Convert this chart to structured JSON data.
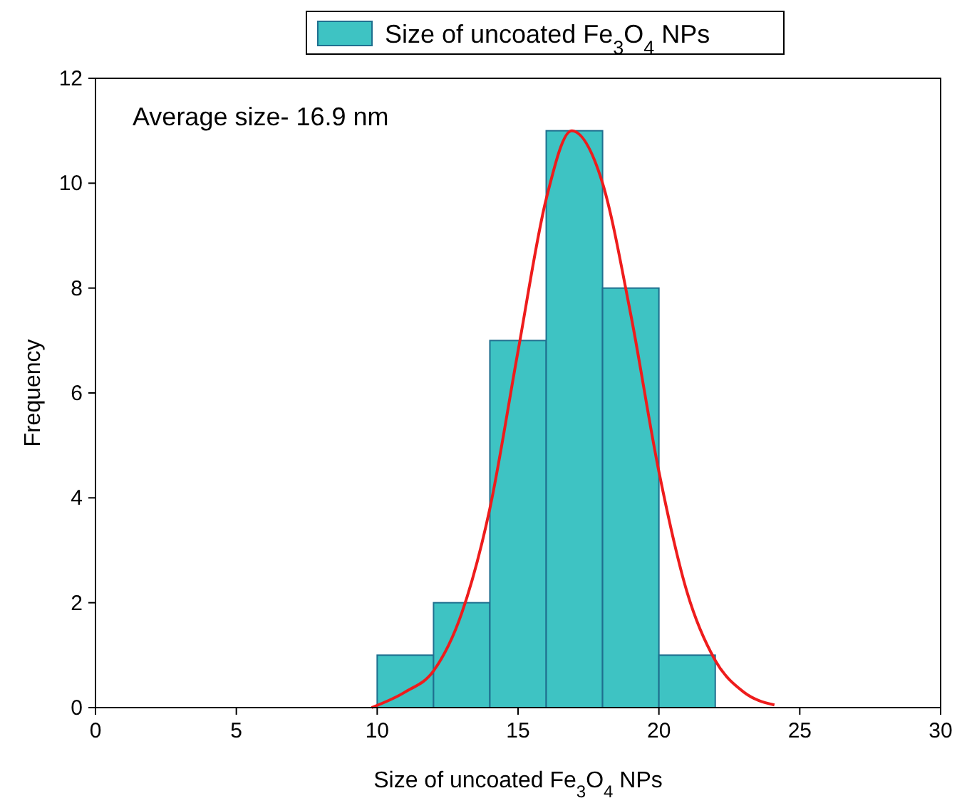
{
  "chart_data": {
    "type": "histogram",
    "xlabel": "Size of uncoated Fe$_{3}$O$_{4}$ NPs",
    "ylabel": "Frequency",
    "annotations": [
      "Average size- 16.9 nm"
    ],
    "bins": [
      10,
      12,
      14,
      16,
      18,
      20,
      22
    ],
    "series": [
      {
        "name": "Size of uncoated Fe$_{3}$O$_{4}$ NPs",
        "color": "#3ec3c3",
        "values": [
          1,
          2,
          7,
          11,
          8,
          1
        ]
      },
      {
        "type": "line",
        "color": "#ee1c1c",
        "x": [
          9.8,
          11,
          12,
          13,
          14,
          15,
          16,
          16.9,
          18,
          19,
          20,
          21,
          22,
          23,
          24.1
        ],
        "values": [
          0,
          0.3,
          0.7,
          1.8,
          3.8,
          6.8,
          9.7,
          11,
          10,
          7.5,
          4.5,
          2.2,
          0.9,
          0.3,
          0.05
        ]
      }
    ],
    "xlim": [
      0,
      30
    ],
    "ylim": [
      0,
      12
    ],
    "xticks": [
      0,
      5,
      10,
      15,
      20,
      25,
      30
    ],
    "yticks": [
      0,
      2,
      4,
      6,
      8,
      10,
      12
    ],
    "legend": "top",
    "grid": false
  }
}
